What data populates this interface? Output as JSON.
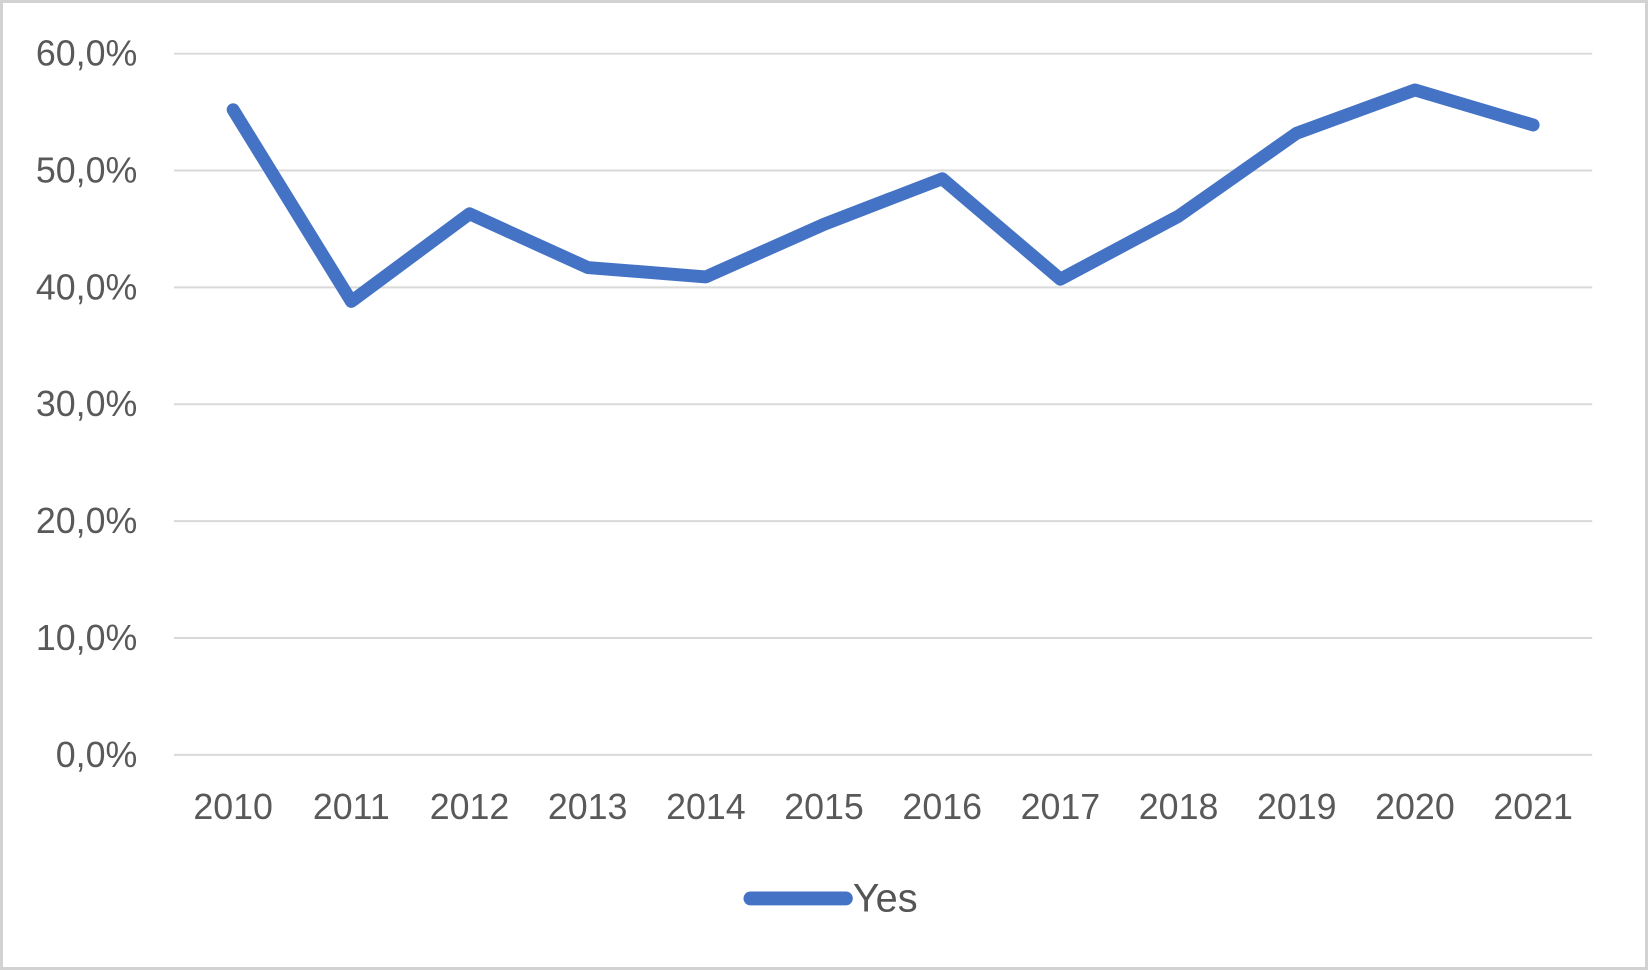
{
  "chart_data": {
    "type": "line",
    "title": "",
    "xlabel": "",
    "ylabel": "",
    "categories": [
      "2010",
      "2011",
      "2012",
      "2013",
      "2014",
      "2015",
      "2016",
      "2017",
      "2018",
      "2019",
      "2020",
      "2021"
    ],
    "series": [
      {
        "name": "Yes",
        "values": [
          55.2,
          38.8,
          46.3,
          41.7,
          40.9,
          45.4,
          49.3,
          40.7,
          46.1,
          53.2,
          56.9,
          53.9
        ]
      }
    ],
    "ylim": [
      0,
      60
    ],
    "ytick_step": 10,
    "ytick_labels": [
      "0,0%",
      "10,0%",
      "20,0%",
      "30,0%",
      "40,0%",
      "50,0%",
      "60,0%"
    ],
    "grid": true,
    "legend_position": "bottom-center",
    "decimal_separator": ","
  },
  "legend": {
    "series_label": "Yes"
  },
  "styles": {
    "series_color": "#4472C4",
    "gridline_color": "#D9D9D9",
    "axis_line_color": "#D9D9D9",
    "tick_label_color": "#595959",
    "legend_text_color": "#555555",
    "background_color": "#FFFFFF",
    "frame_border_color": "#D2D2D2"
  }
}
